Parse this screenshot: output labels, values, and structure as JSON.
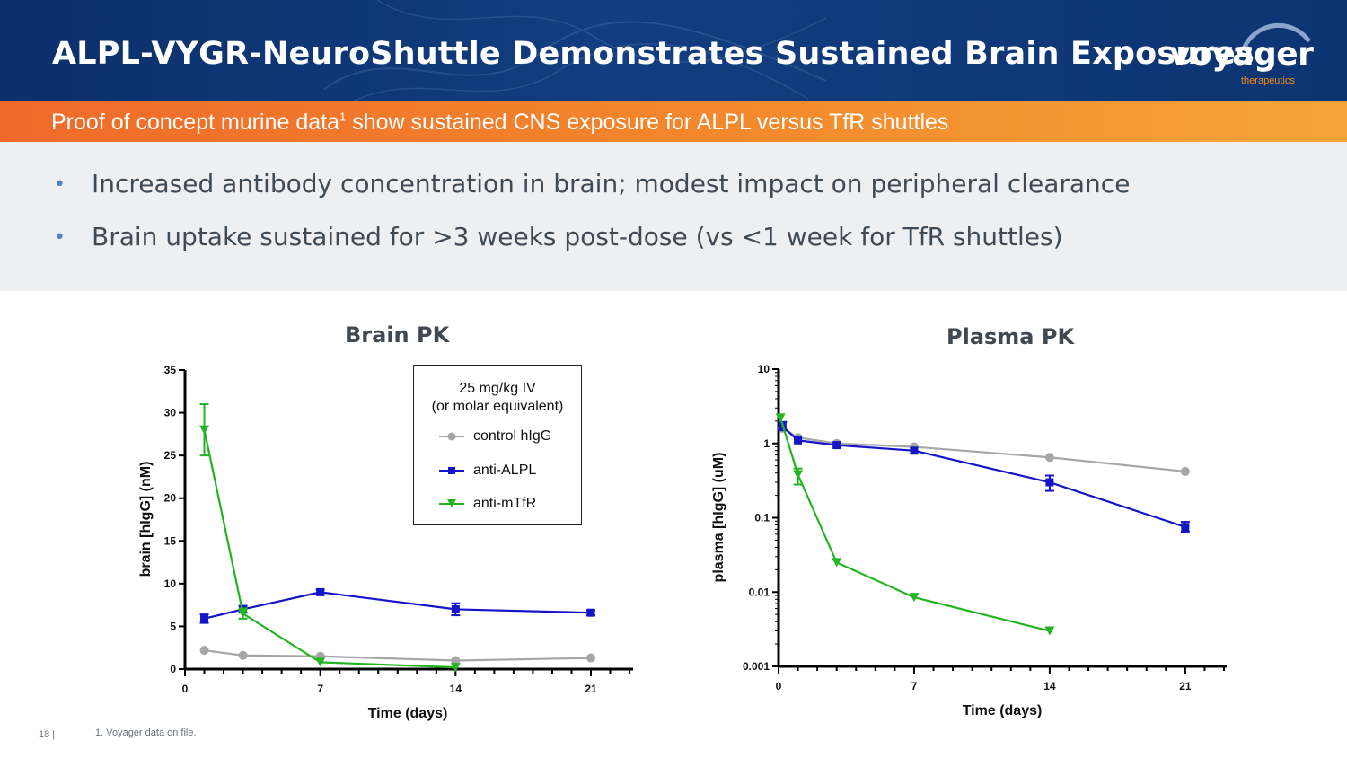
{
  "header": {
    "title": "ALPL-VYGR-NeuroShuttle Demonstrates Sustained Brain Exposures",
    "logo_word": "voyager",
    "logo_sub": "therapeutics"
  },
  "subtitle": {
    "text": "Proof of concept murine data",
    "sup": "1",
    "text_after": " show sustained CNS exposure for ALPL versus TfR shuttles"
  },
  "bullets": [
    "Increased antibody concentration in brain; modest impact on peripheral clearance",
    "Brain uptake sustained for >3 weeks post-dose (vs <1 week for TfR shuttles)"
  ],
  "bullet_glyph": "•",
  "legend": {
    "title_line1": "25 mg/kg IV",
    "title_line2": "(or molar equivalent)",
    "items": [
      "control hIgG",
      "anti-ALPL",
      "anti-mTfR"
    ]
  },
  "colors": {
    "control": "#a6a6a6",
    "alpl": "#1515c8",
    "mtfr": "#22b422",
    "header_bg": "#0b2f6b",
    "band": "#f3892c"
  },
  "chart_data": [
    {
      "type": "line",
      "title": "Brain PK",
      "xlabel": "Time (days)",
      "ylabel": "brain [hIgG] (nM)",
      "xlim": [
        0,
        21
      ],
      "ylim": [
        0,
        35
      ],
      "xticks": [
        0,
        7,
        14,
        21
      ],
      "yticks": [
        0,
        5,
        10,
        15,
        20,
        25,
        30,
        35
      ],
      "xtick_labels": [
        "0",
        "7",
        "14",
        "21"
      ],
      "ytick_labels": [
        "0",
        "5",
        "10",
        "15",
        "20",
        "25",
        "30",
        "35"
      ],
      "series": [
        {
          "name": "control hIgG",
          "color": "#a6a6a6",
          "marker": "circle",
          "points": [
            {
              "x": 1,
              "y": 2.2
            },
            {
              "x": 3,
              "y": 1.6
            },
            {
              "x": 7,
              "y": 1.5
            },
            {
              "x": 14,
              "y": 1.0
            },
            {
              "x": 21,
              "y": 1.3
            }
          ]
        },
        {
          "name": "anti-ALPL",
          "color": "#1515c8",
          "marker": "square",
          "points": [
            {
              "x": 1,
              "y": 5.9,
              "err": 0.5
            },
            {
              "x": 3,
              "y": 7.0,
              "err": 0.4
            },
            {
              "x": 7,
              "y": 9.0,
              "err": 0.3
            },
            {
              "x": 14,
              "y": 7.0,
              "err": 0.7
            },
            {
              "x": 21,
              "y": 6.6,
              "err": 0.3
            }
          ]
        },
        {
          "name": "anti-mTfR",
          "color": "#22b422",
          "marker": "triangle",
          "points": [
            {
              "x": 1,
              "y": 28.0,
              "err": 3.0
            },
            {
              "x": 3,
              "y": 6.5,
              "err": 0.6
            },
            {
              "x": 7,
              "y": 0.8
            },
            {
              "x": 14,
              "y": 0.2
            }
          ]
        }
      ]
    },
    {
      "type": "line",
      "title": "Plasma PK",
      "xlabel": "Time (days)",
      "ylabel": "plasma [hIgG] (uM)",
      "yscale": "log",
      "xlim": [
        0,
        23
      ],
      "ylim": [
        0.001,
        10
      ],
      "xticks": [
        0,
        7,
        14,
        21
      ],
      "yticks": [
        0.001,
        0.01,
        0.1,
        1,
        10
      ],
      "xtick_labels": [
        "0",
        "7",
        "14",
        "21"
      ],
      "ytick_labels": [
        "0.001",
        "0.01",
        "0.1",
        "1",
        "10"
      ],
      "series": [
        {
          "name": "control hIgG",
          "color": "#a6a6a6",
          "marker": "circle",
          "points": [
            {
              "x": 0.2,
              "y": 1.6
            },
            {
              "x": 1,
              "y": 1.2
            },
            {
              "x": 3,
              "y": 1.0
            },
            {
              "x": 7,
              "y": 0.9
            },
            {
              "x": 14,
              "y": 0.65
            },
            {
              "x": 21,
              "y": 0.42
            }
          ]
        },
        {
          "name": "anti-ALPL",
          "color": "#1515c8",
          "marker": "square",
          "points": [
            {
              "x": 0.2,
              "y": 1.7,
              "elo": 1.5,
              "ehi": 1.95
            },
            {
              "x": 1,
              "y": 1.1
            },
            {
              "x": 3,
              "y": 0.95
            },
            {
              "x": 7,
              "y": 0.8
            },
            {
              "x": 14,
              "y": 0.3,
              "elo": 0.23,
              "ehi": 0.37
            },
            {
              "x": 21,
              "y": 0.075,
              "elo": 0.065,
              "ehi": 0.088
            }
          ]
        },
        {
          "name": "anti-mTfR",
          "color": "#22b422",
          "marker": "triangle",
          "points": [
            {
              "x": 0.1,
              "y": 2.2
            },
            {
              "x": 1,
              "y": 0.38,
              "elo": 0.28,
              "ehi": 0.46
            },
            {
              "x": 3,
              "y": 0.025
            },
            {
              "x": 7,
              "y": 0.0085
            },
            {
              "x": 14,
              "y": 0.003
            }
          ]
        }
      ]
    }
  ],
  "footer": {
    "page": "18 |",
    "note": "1. Voyager data on file."
  }
}
